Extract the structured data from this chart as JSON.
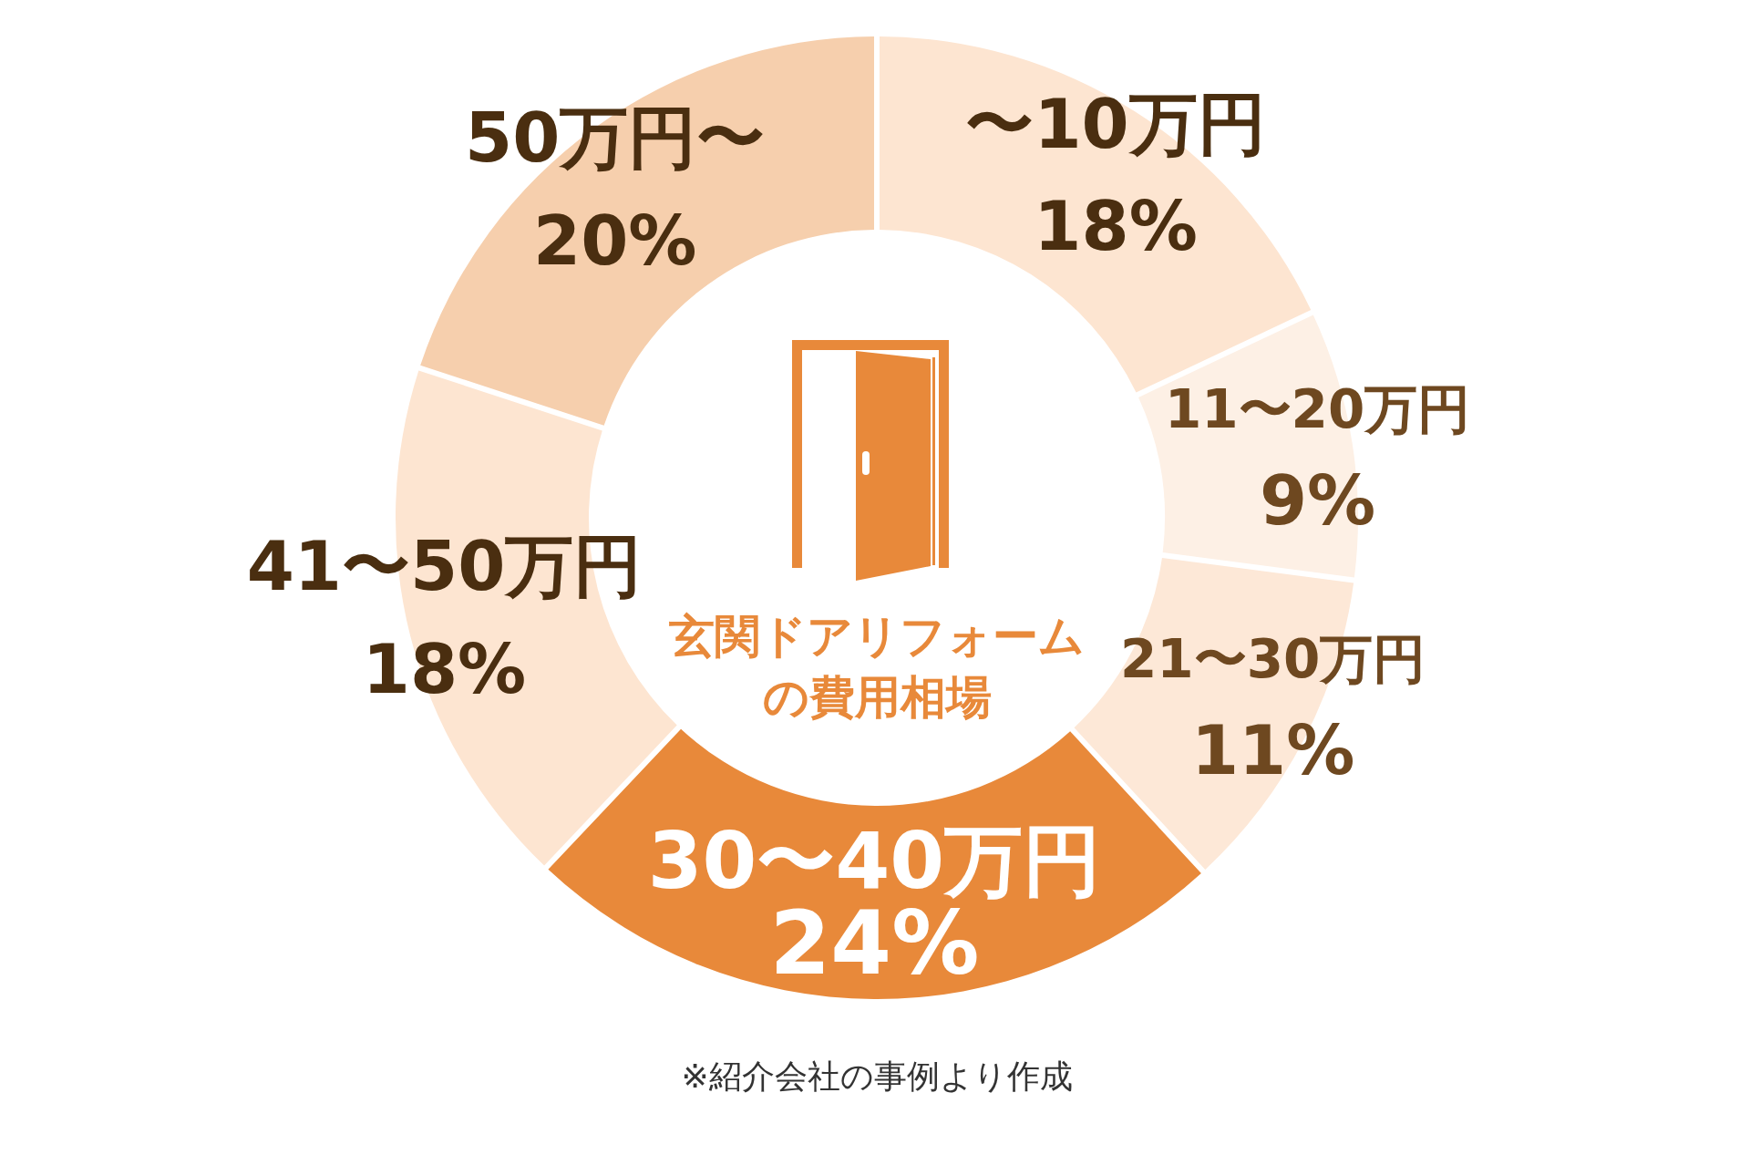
{
  "chart_data": {
    "type": "donut",
    "title": "玄関ドアリフォームの費用相場",
    "categories": [
      "〜10万円",
      "11〜20万円",
      "21〜30万円",
      "30〜40万円",
      "41〜50万円",
      "50万円〜"
    ],
    "values": [
      18,
      9,
      11,
      24,
      18,
      20
    ],
    "value_labels": [
      "18%",
      "9%",
      "11%",
      "24%",
      "18%",
      "20%"
    ],
    "colors": [
      "#fde5d1",
      "#fdf0e5",
      "#fde8d7",
      "#e8893a",
      "#fde5d1",
      "#f6cfad"
    ],
    "annotations": [
      "※紹介会社の事例より作成"
    ]
  }
}
